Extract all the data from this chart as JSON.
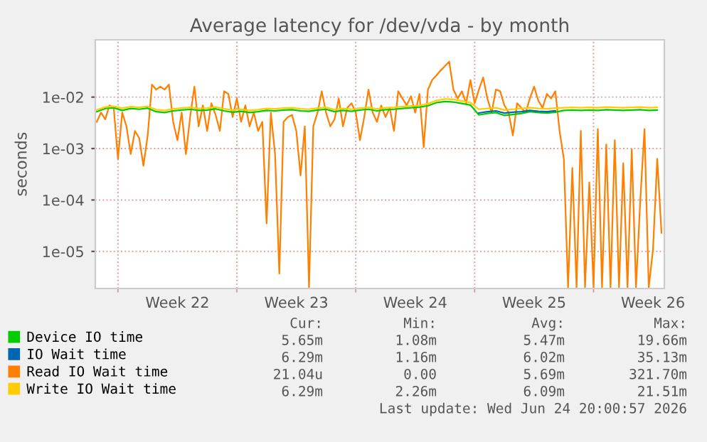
{
  "chart_data": {
    "type": "line",
    "title": "Average latency for /dev/vda - by month",
    "ylabel": "seconds",
    "log": "y",
    "ylim": [
      1.9e-06,
      0.13
    ],
    "yticks": [
      {
        "value": 1e-05,
        "label": "1e-05"
      },
      {
        "value": 0.0001,
        "label": "1e-04"
      },
      {
        "value": 0.001,
        "label": "1e-03"
      },
      {
        "value": 0.01,
        "label": "1e-02"
      }
    ],
    "xlim": [
      "2026-05-23T16:00",
      "2026-06-26T04:00"
    ],
    "xticks": [
      {
        "value": "2026-05-25",
        "label": null
      },
      {
        "value": "2026-05-28T12:00",
        "label": "Week 22"
      },
      {
        "value": "2026-06-01",
        "label": null
      },
      {
        "value": "2026-06-04T12:00",
        "label": "Week 23"
      },
      {
        "value": "2026-06-08",
        "label": null
      },
      {
        "value": "2026-06-11T12:00",
        "label": "Week 24"
      },
      {
        "value": "2026-06-15",
        "label": null
      },
      {
        "value": "2026-06-18T12:00",
        "label": "Week 25"
      },
      {
        "value": "2026-06-22",
        "label": null
      },
      {
        "value": "2026-06-25T12:00",
        "label": "Week 26"
      }
    ],
    "grid": true,
    "legend": "bottom",
    "marker": "none",
    "line_style": "solid",
    "x": [
      "2026-05-23T18:00",
      "2026-05-24T06:00",
      "2026-05-24T18:00",
      "2026-05-25T06:00",
      "2026-05-25T18:00",
      "2026-05-26T06:00",
      "2026-05-26T18:00",
      "2026-05-27T06:00",
      "2026-05-27T18:00",
      "2026-05-28T06:00",
      "2026-05-28T18:00",
      "2026-05-29T06:00",
      "2026-05-29T18:00",
      "2026-05-30T06:00",
      "2026-05-30T18:00",
      "2026-05-31T06:00",
      "2026-05-31T18:00",
      "2026-06-01T06:00",
      "2026-06-01T18:00",
      "2026-06-02T06:00",
      "2026-06-02T18:00",
      "2026-06-03T06:00",
      "2026-06-03T18:00",
      "2026-06-04T06:00",
      "2026-06-04T18:00",
      "2026-06-05T06:00",
      "2026-06-05T18:00",
      "2026-06-06T06:00",
      "2026-06-06T18:00",
      "2026-06-07T06:00",
      "2026-06-07T18:00",
      "2026-06-08T06:00",
      "2026-06-08T18:00",
      "2026-06-09T06:00",
      "2026-06-09T18:00",
      "2026-06-10T06:00",
      "2026-06-10T18:00",
      "2026-06-11T06:00",
      "2026-06-11T18:00",
      "2026-06-12T06:00",
      "2026-06-12T18:00",
      "2026-06-13T06:00",
      "2026-06-13T18:00",
      "2026-06-14T06:00",
      "2026-06-14T18:00",
      "2026-06-15T06:00",
      "2026-06-15T18:00",
      "2026-06-16T06:00",
      "2026-06-16T18:00",
      "2026-06-17T06:00",
      "2026-06-17T18:00",
      "2026-06-18T06:00",
      "2026-06-18T18:00",
      "2026-06-19T06:00",
      "2026-06-19T18:00",
      "2026-06-20T06:00",
      "2026-06-20T18:00",
      "2026-06-21T06:00",
      "2026-06-21T18:00",
      "2026-06-22T06:00",
      "2026-06-22T18:00",
      "2026-06-23T06:00",
      "2026-06-23T18:00",
      "2026-06-24T06:00",
      "2026-06-24T18:00",
      "2026-06-25T06:00",
      "2026-06-25T18:00"
    ],
    "series": [
      {
        "name": "Device IO time",
        "color": "#00cc00",
        "values": [
          0.0052,
          0.006,
          0.0062,
          0.0055,
          0.006,
          0.0058,
          0.0061,
          0.0052,
          0.005,
          0.0054,
          0.0056,
          0.0058,
          0.0055,
          0.0056,
          0.0059,
          0.0054,
          0.0051,
          0.0053,
          0.005,
          0.0052,
          0.0055,
          0.0054,
          0.0056,
          0.0057,
          0.0054,
          0.0053,
          0.0056,
          0.0058,
          0.0052,
          0.0055,
          0.0053,
          0.0056,
          0.0058,
          0.0054,
          0.0057,
          0.0058,
          0.006,
          0.0062,
          0.0064,
          0.0068,
          0.0078,
          0.0082,
          0.008,
          0.0075,
          0.007,
          0.0045,
          0.0048,
          0.005,
          0.0044,
          0.0046,
          0.0048,
          0.0052,
          0.005,
          0.0049,
          0.0051,
          0.0055,
          0.0056,
          0.0055,
          0.0056,
          0.0055,
          0.0057,
          0.0056,
          0.0055,
          0.0056,
          0.0057,
          0.0055,
          0.0056
        ]
      },
      {
        "name": "IO Wait time",
        "color": "#0066b3",
        "values": [
          null,
          null,
          null,
          null,
          null,
          null,
          null,
          null,
          null,
          null,
          null,
          null,
          null,
          null,
          null,
          null,
          null,
          null,
          null,
          null,
          null,
          null,
          null,
          null,
          null,
          null,
          null,
          null,
          null,
          null,
          null,
          null,
          null,
          null,
          null,
          null,
          null,
          null,
          null,
          null,
          null,
          null,
          null,
          null,
          null,
          0.0049,
          0.0052,
          0.0054,
          0.0049,
          0.0051,
          0.0052,
          0.0055,
          0.0053,
          0.0052,
          0.0054,
          null,
          null,
          null,
          null,
          null,
          null,
          null,
          null,
          null,
          null,
          null,
          null
        ]
      },
      {
        "name": "Write IO Wait time",
        "color": "#ffcc00",
        "values": [
          0.0056,
          0.0064,
          0.0066,
          0.0061,
          0.0065,
          0.0063,
          0.0066,
          0.0057,
          0.0055,
          0.0059,
          0.0061,
          0.0063,
          0.006,
          0.0061,
          0.0064,
          0.0059,
          0.0056,
          0.0058,
          0.0055,
          0.0057,
          0.006,
          0.0059,
          0.0061,
          0.0062,
          0.0059,
          0.0058,
          0.0061,
          0.0063,
          0.0057,
          0.006,
          0.0058,
          0.0061,
          0.0063,
          0.0059,
          0.0062,
          0.0063,
          0.0065,
          0.0067,
          0.0069,
          0.0074,
          0.0086,
          0.0092,
          0.009,
          0.0084,
          0.0078,
          0.0058,
          0.006,
          0.0062,
          0.0056,
          0.0058,
          0.006,
          0.0062,
          0.006,
          0.0059,
          0.0061,
          0.0062,
          0.0063,
          0.0062,
          0.0063,
          0.0062,
          0.0064,
          0.0063,
          0.0062,
          0.0063,
          0.0064,
          0.0062,
          0.0063
        ]
      },
      {
        "name": "Read IO Wait time",
        "color": "#ff8000",
        "x": [
          "2026-05-23T18:00",
          "2026-05-24T00:00",
          "2026-05-24T06:00",
          "2026-05-24T12:00",
          "2026-05-24T18:00",
          "2026-05-25T00:00",
          "2026-05-25T06:00",
          "2026-05-25T12:00",
          "2026-05-25T18:00",
          "2026-05-26T00:00",
          "2026-05-26T06:00",
          "2026-05-26T12:00",
          "2026-05-26T18:00",
          "2026-05-27T00:00",
          "2026-05-27T06:00",
          "2026-05-27T12:00",
          "2026-05-27T18:00",
          "2026-05-28T00:00",
          "2026-05-28T06:00",
          "2026-05-28T12:00",
          "2026-05-28T18:00",
          "2026-05-29T00:00",
          "2026-05-29T06:00",
          "2026-05-29T12:00",
          "2026-05-29T18:00",
          "2026-05-30T00:00",
          "2026-05-30T06:00",
          "2026-05-30T12:00",
          "2026-05-30T18:00",
          "2026-05-31T00:00",
          "2026-05-31T06:00",
          "2026-05-31T12:00",
          "2026-05-31T18:00",
          "2026-06-01T00:00",
          "2026-06-01T06:00",
          "2026-06-01T12:00",
          "2026-06-01T18:00",
          "2026-06-02T00:00",
          "2026-06-02T06:00",
          "2026-06-02T12:00",
          "2026-06-02T18:00",
          "2026-06-03T00:00",
          "2026-06-03T06:00",
          "2026-06-03T12:00",
          "2026-06-03T18:00",
          "2026-06-04T00:00",
          "2026-06-04T06:00",
          "2026-06-04T12:00",
          "2026-06-04T18:00",
          "2026-06-05T00:00",
          "2026-06-05T06:00",
          "2026-06-05T12:00",
          "2026-06-05T18:00",
          "2026-06-06T00:00",
          "2026-06-06T06:00",
          "2026-06-06T12:00",
          "2026-06-06T18:00",
          "2026-06-07T00:00",
          "2026-06-07T06:00",
          "2026-06-07T12:00",
          "2026-06-07T18:00",
          "2026-06-08T00:00",
          "2026-06-08T06:00",
          "2026-06-08T12:00",
          "2026-06-08T18:00",
          "2026-06-09T00:00",
          "2026-06-09T06:00",
          "2026-06-09T12:00",
          "2026-06-09T18:00",
          "2026-06-10T00:00",
          "2026-06-10T06:00",
          "2026-06-10T12:00",
          "2026-06-10T18:00",
          "2026-06-11T00:00",
          "2026-06-11T06:00",
          "2026-06-11T12:00",
          "2026-06-11T18:00",
          "2026-06-12T00:00",
          "2026-06-12T06:00",
          "2026-06-12T12:00",
          "2026-06-12T18:00",
          "2026-06-13T00:00",
          "2026-06-13T06:00",
          "2026-06-13T12:00",
          "2026-06-13T18:00",
          "2026-06-14T00:00",
          "2026-06-14T06:00",
          "2026-06-14T12:00",
          "2026-06-14T18:00",
          "2026-06-15T00:00",
          "2026-06-15T06:00",
          "2026-06-15T12:00",
          "2026-06-15T18:00",
          "2026-06-16T00:00",
          "2026-06-16T06:00",
          "2026-06-16T12:00",
          "2026-06-16T18:00",
          "2026-06-17T00:00",
          "2026-06-17T06:00",
          "2026-06-17T12:00",
          "2026-06-17T18:00",
          "2026-06-18T00:00",
          "2026-06-18T06:00",
          "2026-06-18T12:00",
          "2026-06-18T18:00",
          "2026-06-19T00:00",
          "2026-06-19T06:00",
          "2026-06-19T12:00",
          "2026-06-19T18:00",
          "2026-06-20T00:00",
          "2026-06-20T06:00",
          "2026-06-20T12:00",
          "2026-06-20T18:00",
          "2026-06-21T00:00",
          "2026-06-21T06:00",
          "2026-06-21T12:00",
          "2026-06-21T18:00",
          "2026-06-22T00:00",
          "2026-06-22T06:00",
          "2026-06-22T12:00",
          "2026-06-22T18:00",
          "2026-06-23T00:00",
          "2026-06-23T06:00",
          "2026-06-23T12:00",
          "2026-06-23T18:00",
          "2026-06-24T00:00",
          "2026-06-24T06:00",
          "2026-06-24T12:00",
          "2026-06-24T18:00",
          "2026-06-25T00:00",
          "2026-06-25T06:00",
          "2026-06-25T12:00",
          "2026-06-25T18:00",
          "2026-06-26T00:00"
        ],
        "values": [
          0.0033,
          0.005,
          0.0037,
          0.0069,
          0.0062,
          0.00063,
          0.005,
          0.0027,
          0.00078,
          0.0022,
          0.0016,
          0.00046,
          0.0018,
          0.0175,
          0.014,
          0.016,
          0.014,
          0.0175,
          0.0033,
          0.00145,
          0.005,
          0.00078,
          0.0041,
          0.016,
          0.0027,
          0.0069,
          0.0022,
          0.0076,
          0.0045,
          0.0022,
          0.013,
          0.0115,
          0.0041,
          0.0094,
          0.0033,
          0.0069,
          0.0027,
          0.005,
          0.0022,
          0.0033,
          3.5e-05,
          0.005,
          0.00078,
          3.7e-06,
          0.0033,
          0.0041,
          0.0045,
          0.0022,
          0.0003,
          0.0027,
          2e-06,
          0.0027,
          0.005,
          0.013,
          0.005,
          0.0027,
          0.0037,
          0.0094,
          0.0027,
          0.0062,
          0.0076,
          0.005,
          0.00145,
          0.0041,
          0.014,
          0.005,
          0.0033,
          0.0069,
          0.0041,
          0.0062,
          0.0022,
          0.013,
          0.0094,
          0.0069,
          0.0104,
          0.005,
          0.0115,
          0.00106,
          0.014,
          0.0215,
          0.0265,
          0.033,
          0.04,
          0.049,
          0.014,
          0.0094,
          0.013,
          0.0076,
          0.0215,
          0.0076,
          0.014,
          0.024,
          0.0094,
          0.005,
          0.014,
          0.013,
          0.0069,
          0.005,
          0.0018,
          0.0076,
          0.0062,
          0.005,
          0.0094,
          0.016,
          0.0085,
          0.0062,
          0.0115,
          0.0094,
          0.013,
          0.0022,
          0.00063,
          2e-06,
          0.00042,
          2e-06,
          0.0022,
          2e-06,
          0.00022,
          2e-06,
          0.0024,
          2e-06,
          0.0012,
          2e-06,
          0.00145,
          2e-06,
          0.00052,
          2e-06,
          0.00096,
          2e-06,
          9.8e-05,
          0.0024,
          2e-06,
          1.1e-05,
          0.00063,
          2.3e-05
        ]
      }
    ],
    "annotations": [
      "Cur:",
      "Min:",
      "Avg:",
      "Max:",
      "5.65m",
      "1.08m",
      "5.47m",
      "19.66m",
      "6.29m",
      "1.16m",
      "6.02m",
      "35.13m",
      "21.04u",
      "0.00",
      "5.69m",
      "321.70m",
      "6.29m",
      "2.26m",
      "6.09m",
      "21.51m",
      "Last update: Wed Jun 24 20:00:57 2026"
    ]
  }
}
